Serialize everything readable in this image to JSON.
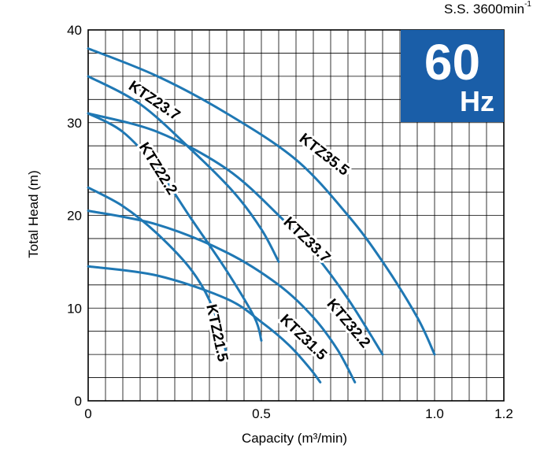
{
  "header": {
    "speed_text": "S.S. 3600min",
    "speed_sup": "-1"
  },
  "badge": {
    "number": "60",
    "unit": "Hz",
    "color": "#1a5ea8"
  },
  "chart_data": {
    "type": "line",
    "xlabel": "Capacity (m³/min)",
    "ylabel": "Total Head (m)",
    "xlim": [
      0,
      1.2
    ],
    "ylim": [
      0,
      40
    ],
    "x_ticks": [
      "0",
      "0.5",
      "1.0",
      "1.2"
    ],
    "x_tick_values": [
      0,
      0.5,
      1.0,
      1.2
    ],
    "y_ticks": [
      "0",
      "10",
      "20",
      "30",
      "40"
    ],
    "y_tick_values": [
      0,
      10,
      20,
      30,
      40
    ],
    "grid": true,
    "line_color": "#1f78b4",
    "series": [
      {
        "name": "KTZ35.5",
        "x": [
          0,
          0.2,
          0.4,
          0.6,
          0.75,
          0.85,
          0.95,
          1.0
        ],
        "y": [
          38,
          35,
          31,
          26,
          20,
          15,
          9,
          5
        ]
      },
      {
        "name": "KTZ33.7",
        "x": [
          0,
          0.2,
          0.4,
          0.55,
          0.65,
          0.75,
          0.85
        ],
        "y": [
          31,
          29,
          25,
          20,
          16,
          11,
          5
        ]
      },
      {
        "name": "KTZ32.2",
        "x": [
          0,
          0.2,
          0.4,
          0.55,
          0.65,
          0.72,
          0.77
        ],
        "y": [
          20.5,
          19,
          16,
          12.5,
          9,
          5.5,
          2
        ]
      },
      {
        "name": "KTZ31.5",
        "x": [
          0,
          0.2,
          0.4,
          0.5,
          0.58,
          0.64,
          0.67
        ],
        "y": [
          14.5,
          13.5,
          11,
          8.5,
          6,
          3.5,
          2
        ]
      },
      {
        "name": "KTZ23.7",
        "x": [
          0,
          0.15,
          0.3,
          0.42,
          0.5,
          0.55
        ],
        "y": [
          35,
          32,
          27,
          22.5,
          18.5,
          15
        ]
      },
      {
        "name": "KTZ22.2",
        "x": [
          0,
          0.1,
          0.2,
          0.3,
          0.4,
          0.48,
          0.5
        ],
        "y": [
          31,
          29,
          25,
          19.5,
          14,
          9,
          6.5
        ]
      },
      {
        "name": "KTZ21.5",
        "x": [
          0,
          0.1,
          0.2,
          0.3,
          0.36,
          0.4
        ],
        "y": [
          23,
          21,
          18,
          14,
          10,
          5
        ]
      }
    ],
    "labels": [
      {
        "text": "KTZ23.7",
        "x": 0.19,
        "y": 32.3,
        "angle": 34
      },
      {
        "text": "KTZ22.2",
        "x": 0.2,
        "y": 25,
        "angle": 58
      },
      {
        "text": "KTZ35.5",
        "x": 0.68,
        "y": 26.5,
        "angle": 38
      },
      {
        "text": "KTZ33.7",
        "x": 0.63,
        "y": 17.3,
        "angle": 44
      },
      {
        "text": "KTZ32.2",
        "x": 0.75,
        "y": 8.3,
        "angle": 50
      },
      {
        "text": "KTZ31.5",
        "x": 0.62,
        "y": 6.8,
        "angle": 44
      },
      {
        "text": "KTZ21.5",
        "x": 0.37,
        "y": 7.3,
        "angle": 78
      }
    ]
  }
}
